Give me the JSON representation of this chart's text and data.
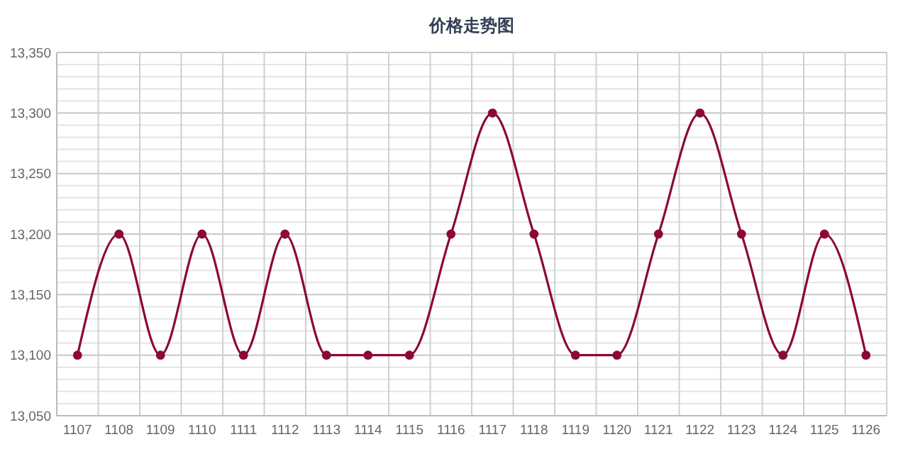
{
  "chart_data": {
    "type": "line",
    "title": "价格走势图",
    "categories": [
      "1107",
      "1108",
      "1109",
      "1110",
      "1111",
      "1112",
      "1113",
      "1114",
      "1115",
      "1116",
      "1117",
      "1118",
      "1119",
      "1120",
      "1121",
      "1122",
      "1123",
      "1124",
      "1125",
      "1126"
    ],
    "series": [
      {
        "color": "#8b0a32",
        "values": [
          13100,
          13200,
          13100,
          13200,
          13100,
          13200,
          13100,
          13100,
          13100,
          13200,
          13300,
          13200,
          13100,
          13100,
          13200,
          13300,
          13200,
          13100,
          13200,
          13100
        ]
      }
    ],
    "ylim": [
      13050,
      13350
    ],
    "yticks": [
      {
        "value": 13050,
        "label": "13,050"
      },
      {
        "value": 13060,
        "label": null
      },
      {
        "value": 13070,
        "label": null
      },
      {
        "value": 13080,
        "label": null
      },
      {
        "value": 13090,
        "label": null
      },
      {
        "value": 13100,
        "label": "13,100"
      },
      {
        "value": 13110,
        "label": null
      },
      {
        "value": 13120,
        "label": null
      },
      {
        "value": 13130,
        "label": null
      },
      {
        "value": 13140,
        "label": null
      },
      {
        "value": 13150,
        "label": "13,150"
      },
      {
        "value": 13160,
        "label": null
      },
      {
        "value": 13170,
        "label": null
      },
      {
        "value": 13180,
        "label": null
      },
      {
        "value": 13190,
        "label": null
      },
      {
        "value": 13200,
        "label": "13,200"
      },
      {
        "value": 13210,
        "label": null
      },
      {
        "value": 13220,
        "label": null
      },
      {
        "value": 13230,
        "label": null
      },
      {
        "value": 13240,
        "label": null
      },
      {
        "value": 13250,
        "label": "13,250"
      },
      {
        "value": 13260,
        "label": null
      },
      {
        "value": 13270,
        "label": null
      },
      {
        "value": 13280,
        "label": null
      },
      {
        "value": 13290,
        "label": null
      },
      {
        "value": 13300,
        "label": "13,300"
      },
      {
        "value": 13310,
        "label": null
      },
      {
        "value": 13320,
        "label": null
      },
      {
        "value": 13330,
        "label": null
      },
      {
        "value": 13340,
        "label": null
      },
      {
        "value": 13350,
        "label": "13,350"
      }
    ],
    "grid": true,
    "marker": "circle",
    "line_style": "solid"
  }
}
